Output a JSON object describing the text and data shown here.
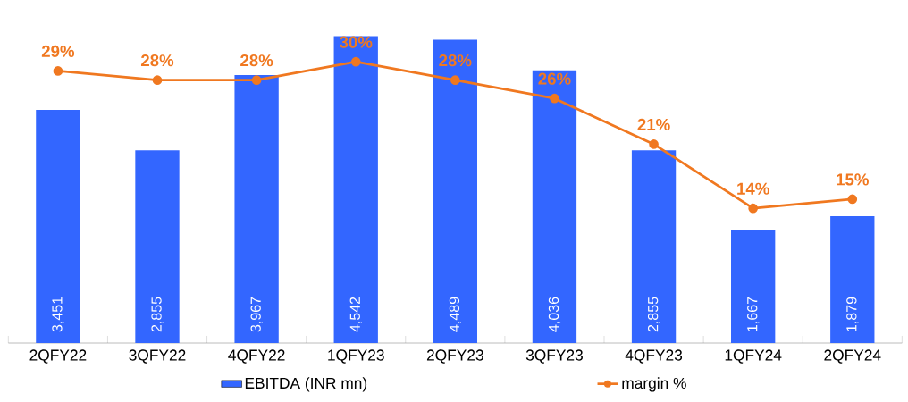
{
  "chart_data": {
    "type": "bar",
    "categories": [
      "2QFY22",
      "3QFY22",
      "4QFY22",
      "1QFY23",
      "2QFY23",
      "3QFY23",
      "4QFY23",
      "1QFY24",
      "2QFY24"
    ],
    "series": [
      {
        "name": "EBITDA (INR mn)",
        "color": "#3366ff",
        "values": [
          3451,
          2855,
          3967,
          4542,
          4489,
          4036,
          2855,
          1667,
          1879
        ],
        "value_labels": [
          "3,451",
          "2,855",
          "3,967",
          "4,542",
          "4,489",
          "4,036",
          "2,855",
          "1,667",
          "1,879"
        ]
      },
      {
        "name": "margin %",
        "type": "line",
        "axis": "y2",
        "color": "#f07820",
        "values": [
          29,
          28,
          28,
          30,
          28,
          26,
          21,
          14,
          15
        ],
        "value_labels": [
          "29%",
          "28%",
          "28%",
          "30%",
          "28%",
          "26%",
          "21%",
          "14%",
          "15%"
        ]
      }
    ],
    "marker": "circle",
    "legend": "bottom",
    "tick_labels": "x",
    "grid": false
  }
}
